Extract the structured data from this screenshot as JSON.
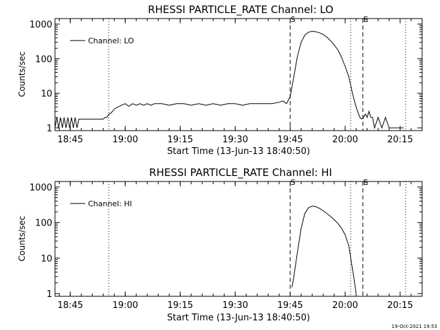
{
  "footer_timestamp": "19-Oct-2021 19:53",
  "chart_data": [
    {
      "type": "line",
      "title": "RHESSI PARTICLE_RATE Channel: LO",
      "xlabel": "Start Time (13-Jun-13 18:40:50)",
      "ylabel": "Counts/sec",
      "yscale": "log",
      "ylim": [
        1,
        1000
      ],
      "yticks": [
        {
          "value": 1,
          "label": "1"
        },
        {
          "value": 10,
          "label": "10"
        },
        {
          "value": 100,
          "label": "100"
        },
        {
          "value": 1000,
          "label": "1000"
        }
      ],
      "xlim": [
        "18:40:50",
        "20:21:00"
      ],
      "xticks": [
        "18:45",
        "19:00",
        "19:15",
        "19:30",
        "19:45",
        "20:00",
        "20:15"
      ],
      "legend": {
        "position": "top-left",
        "label": "Channel: LO"
      },
      "markers": [
        {
          "time": "18:55:30",
          "style": "dotted",
          "label": ""
        },
        {
          "time": "19:45:00",
          "style": "dashed",
          "label": "S"
        },
        {
          "time": "20:01:30",
          "style": "dotted",
          "label": ""
        },
        {
          "time": "20:04:50",
          "style": "dashed",
          "label": "E"
        },
        {
          "time": "20:16:30",
          "style": "dotted",
          "label": ""
        }
      ],
      "series": [
        {
          "name": "Channel: LO",
          "x": [
            "18:40:50",
            "18:41:20",
            "18:41:50",
            "18:42:20",
            "18:42:50",
            "18:43:20",
            "18:43:50",
            "18:44:20",
            "18:44:50",
            "18:45:20",
            "18:45:50",
            "18:46:20",
            "18:46:50",
            "18:47:20",
            "18:47:50",
            "18:48:20",
            "18:49:00",
            "18:50:00",
            "18:51:00",
            "18:52:00",
            "18:53:00",
            "18:54:00",
            "18:54:30",
            "18:55:00",
            "18:55:30",
            "18:56:00",
            "18:56:30",
            "18:57:00",
            "18:58:00",
            "18:59:00",
            "19:00:00",
            "19:01:00",
            "19:02:00",
            "19:03:00",
            "19:04:00",
            "19:05:00",
            "19:06:00",
            "19:07:00",
            "19:08:00",
            "19:09:00",
            "19:10:00",
            "19:12:00",
            "19:14:00",
            "19:16:00",
            "19:18:00",
            "19:20:00",
            "19:22:00",
            "19:24:00",
            "19:26:00",
            "19:28:00",
            "19:30:00",
            "19:32:00",
            "19:34:00",
            "19:36:00",
            "19:38:00",
            "19:40:00",
            "19:42:00",
            "19:43:00",
            "19:44:00",
            "19:45:00",
            "19:46:00",
            "19:47:00",
            "19:48:00",
            "19:49:00",
            "19:50:00",
            "19:51:00",
            "19:52:00",
            "19:53:00",
            "19:54:00",
            "19:55:00",
            "19:56:00",
            "19:57:00",
            "19:58:00",
            "19:59:00",
            "20:00:00",
            "20:01:00",
            "20:02:00",
            "20:03:00",
            "20:04:00",
            "20:04:30",
            "20:05:00",
            "20:05:30",
            "20:06:00",
            "20:06:30",
            "20:07:00",
            "20:07:30",
            "20:08:00",
            "20:09:00",
            "20:10:00",
            "20:11:00",
            "20:12:00",
            "20:13:00",
            "20:14:00",
            "20:15:00",
            "20:16:00"
          ],
          "y": [
            1,
            2,
            1,
            2,
            1,
            2,
            1,
            2,
            1,
            2,
            1,
            2,
            1,
            1.8,
            1.8,
            1.8,
            1.8,
            1.8,
            1.8,
            1.8,
            1.8,
            1.8,
            2,
            2,
            2.5,
            2.6,
            3,
            3.5,
            4,
            4.5,
            5,
            4.2,
            5,
            4.5,
            5,
            4.5,
            5,
            4.5,
            5,
            5,
            5,
            4.5,
            5,
            5,
            4.5,
            5,
            4.5,
            5,
            4.5,
            5,
            5,
            4.5,
            5,
            5,
            5,
            5,
            5.5,
            6,
            5,
            8,
            30,
            120,
            300,
            480,
            580,
            620,
            600,
            560,
            500,
            420,
            330,
            250,
            180,
            110,
            60,
            30,
            10,
            4,
            2,
            1.8,
            2,
            2.5,
            2,
            3,
            2,
            2,
            1,
            2,
            1,
            2,
            1,
            1,
            1,
            1,
            1
          ]
        }
      ]
    },
    {
      "type": "line",
      "title": "RHESSI PARTICLE_RATE Channel: HI",
      "xlabel": "Start Time (13-Jun-13 18:40:50)",
      "ylabel": "Counts/sec",
      "yscale": "log",
      "ylim": [
        1,
        1000
      ],
      "yticks": [
        {
          "value": 1,
          "label": "1"
        },
        {
          "value": 10,
          "label": "10"
        },
        {
          "value": 100,
          "label": "100"
        },
        {
          "value": 1000,
          "label": "1000"
        }
      ],
      "xlim": [
        "18:40:50",
        "20:21:00"
      ],
      "xticks": [
        "18:45",
        "19:00",
        "19:15",
        "19:30",
        "19:45",
        "20:00",
        "20:15"
      ],
      "legend": {
        "position": "top-left",
        "label": "Channel: HI"
      },
      "markers": [
        {
          "time": "18:55:30",
          "style": "dotted",
          "label": ""
        },
        {
          "time": "19:45:00",
          "style": "dashed",
          "label": "S"
        },
        {
          "time": "20:01:30",
          "style": "dotted",
          "label": ""
        },
        {
          "time": "20:04:50",
          "style": "dashed",
          "label": "E"
        },
        {
          "time": "20:16:30",
          "style": "dotted",
          "label": ""
        }
      ],
      "series": [
        {
          "name": "Channel: HI",
          "x": [
            "19:45:30",
            "19:46:00",
            "19:47:00",
            "19:48:00",
            "19:49:00",
            "19:50:00",
            "19:51:00",
            "19:52:00",
            "19:53:00",
            "19:54:00",
            "19:55:00",
            "19:56:00",
            "19:57:00",
            "19:58:00",
            "19:59:00",
            "20:00:00",
            "20:01:00",
            "20:01:40",
            "20:02:20",
            "20:03:00"
          ],
          "y": [
            1.5,
            3,
            15,
            70,
            180,
            260,
            290,
            280,
            250,
            215,
            180,
            150,
            120,
            95,
            70,
            45,
            22,
            8,
            3,
            1
          ]
        }
      ]
    }
  ]
}
